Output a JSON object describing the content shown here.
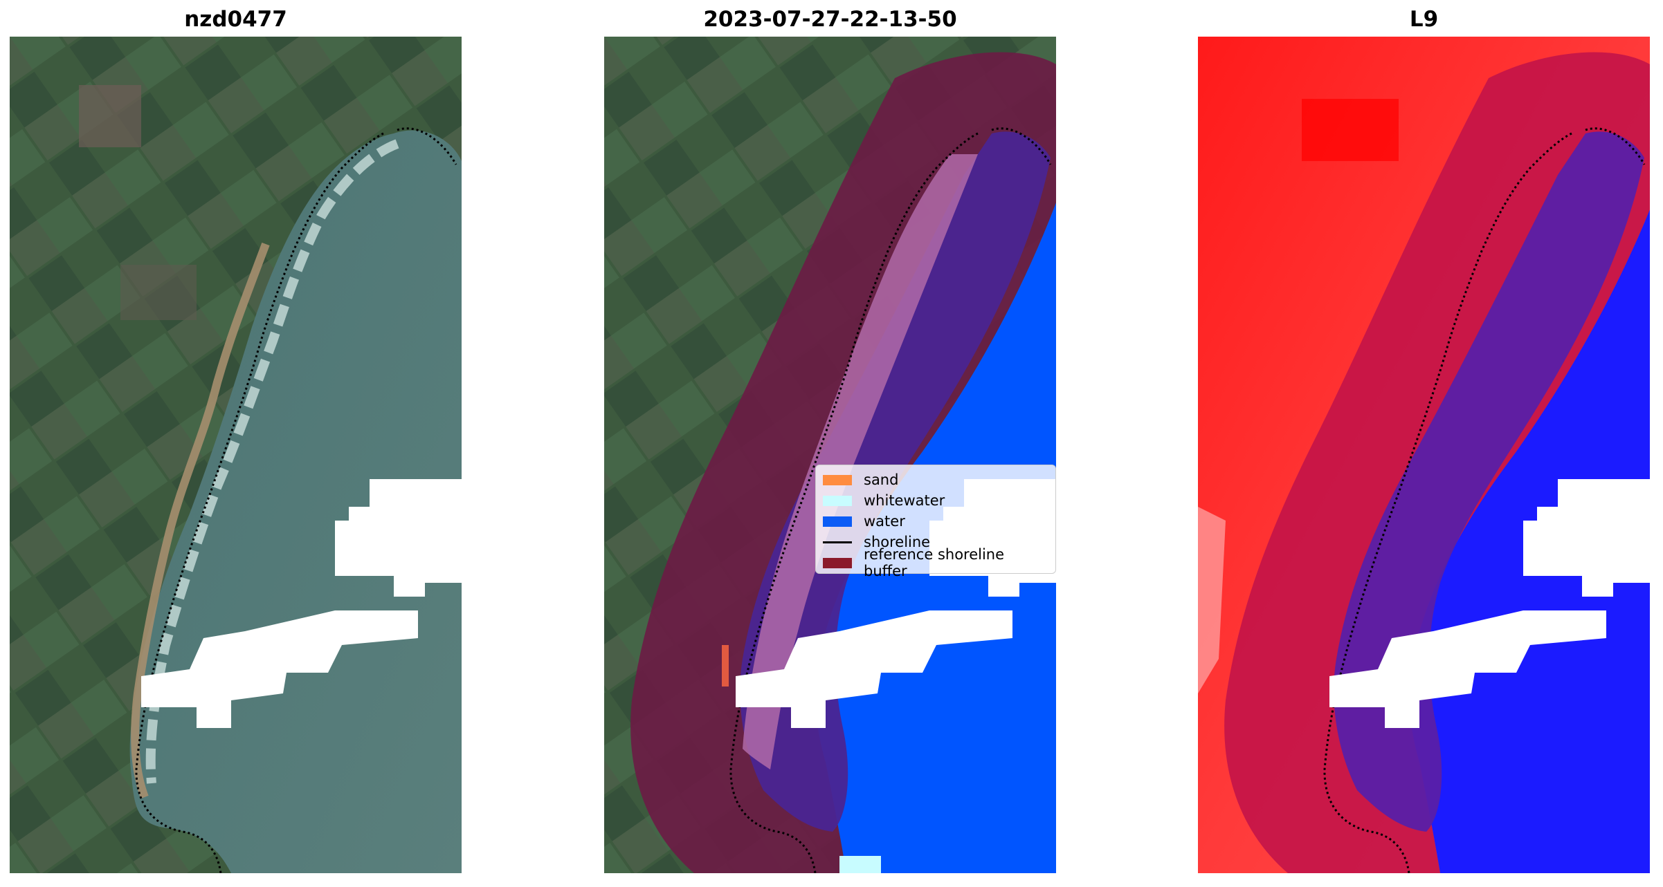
{
  "panels": [
    {
      "title": "nzd0477"
    },
    {
      "title": "2023-07-27-22-13-50"
    },
    {
      "title": "L9"
    }
  ],
  "legend": {
    "items": [
      {
        "label": "sand",
        "color": "#ff8c40",
        "kind": "patch"
      },
      {
        "label": "whitewater",
        "color": "#c8fcff",
        "kind": "patch"
      },
      {
        "label": "water",
        "color": "#0b5cf6",
        "kind": "patch"
      },
      {
        "label": "shoreline",
        "color": "#000000",
        "kind": "line"
      },
      {
        "label": "reference shoreline buffer",
        "color": "#8b1a2b",
        "kind": "patch"
      }
    ]
  },
  "colors": {
    "water_class": "#0055ff",
    "buffer": "#7a1a4a",
    "sea_rgb": "#4f7877",
    "land_rgb": "#3e5a3e",
    "index_land": "#ff2020",
    "index_water": "#1818ff",
    "cloud": "#ffffff"
  }
}
